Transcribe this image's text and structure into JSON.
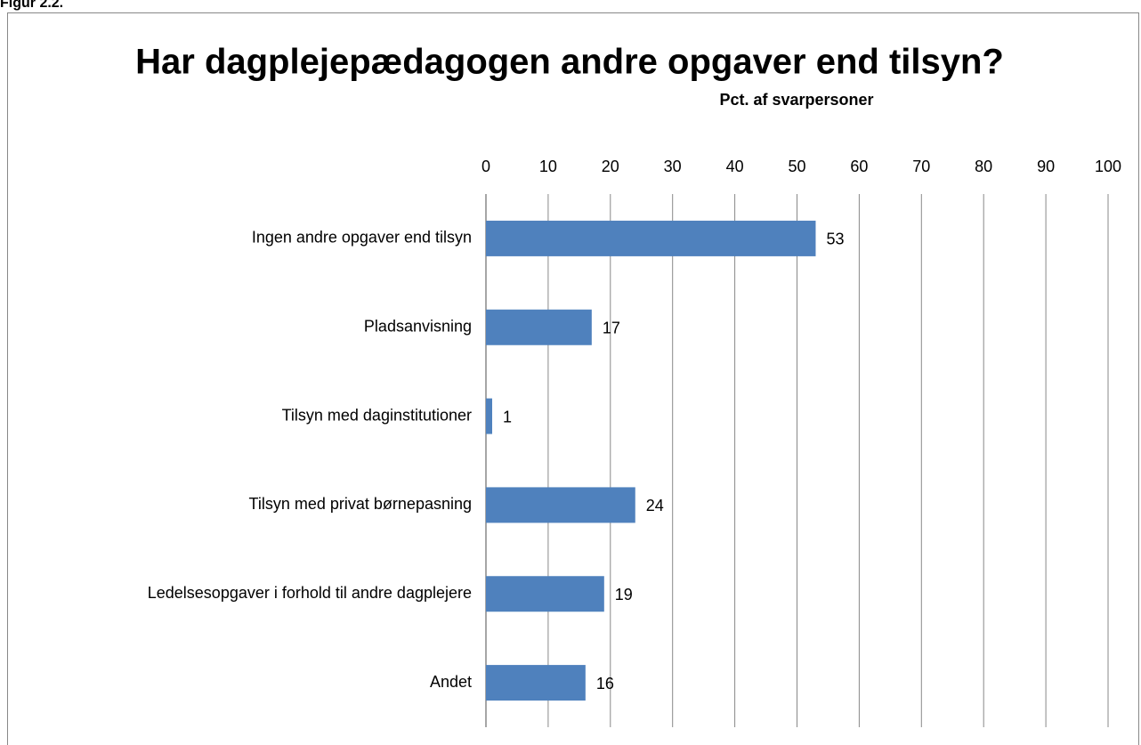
{
  "chart_data": {
    "type": "bar",
    "orientation": "horizontal",
    "figure_label": "Figur 2.2.",
    "title": "Har dagplejepædagogen andre opgaver end tilsyn?",
    "x_label": "Pct. af svarpersoner",
    "categories": [
      "Ingen andre opgaver end tilsyn",
      "Pladsanvisning",
      "Tilsyn med daginstitutioner",
      "Tilsyn med privat børnepasning",
      "Ledelsesopgaver i forhold til andre dagplejere",
      "Andet"
    ],
    "values": [
      53,
      17,
      1,
      24,
      19,
      16
    ],
    "color": "#4f81bd",
    "xlim": [
      0,
      100
    ],
    "xticks": [
      0,
      10,
      20,
      30,
      40,
      50,
      60,
      70,
      80,
      90,
      100
    ],
    "grid": true
  }
}
